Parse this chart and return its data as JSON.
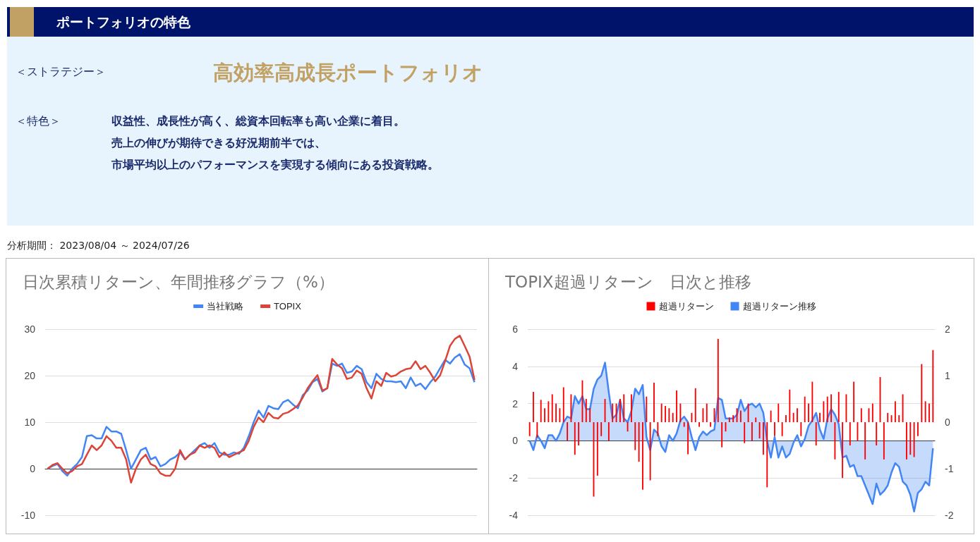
{
  "chart_data": [
    {
      "type": "other",
      "title": "ポートフォリオの特色",
      "subtitle": "高効率高成長ポートフォリオ",
      "annotations": [
        "＜ストラテジー＞",
        "＜特色＞",
        "収益性、成長性が高く、総資本回転率も高い企業に着目。",
        "売上の伸びが期待できる好況期前半では、",
        "市場平均以上のパフォーマンスを実現する傾向にある投資戦略。",
        "分析期間： 2023/08/04 ～ 2024/07/26"
      ]
    },
    {
      "type": "line",
      "title": "日次累積リターン、年間推移グラフ（%）",
      "categories": [
        null,
        null,
        null,
        null,
        null,
        null,
        null,
        null,
        null,
        null,
        null,
        null,
        null,
        null,
        null,
        null,
        null,
        null,
        null,
        null,
        null,
        null,
        null,
        null,
        null,
        null,
        null,
        null,
        null,
        null,
        null,
        null,
        null,
        null,
        null,
        null,
        null,
        null,
        null,
        null,
        null,
        null,
        null,
        null,
        null,
        null,
        null,
        null,
        null,
        null,
        null,
        null,
        null,
        null,
        null,
        null,
        null,
        null,
        null,
        null,
        null,
        null,
        null,
        null,
        null,
        null,
        null,
        null,
        null,
        null,
        null,
        null,
        null,
        null,
        null,
        null,
        null,
        null,
        null,
        null,
        null,
        null,
        null,
        null,
        null,
        null,
        null,
        null
      ],
      "series": [
        {
          "name": "当社戦略",
          "color": "#4285f4",
          "values": [
            0,
            0.6,
            1,
            -0.5,
            -1.5,
            0,
            1,
            2.5,
            7,
            7.2,
            6.5,
            6.5,
            9,
            8,
            8,
            7.5,
            4,
            0,
            2,
            4,
            4.5,
            2,
            2.5,
            0.5,
            1,
            2,
            2.5,
            3.5,
            2,
            3,
            4,
            5,
            5.5,
            4.5,
            5.5,
            3.5,
            3,
            3,
            3.5,
            3.2,
            4.5,
            7,
            10,
            12.5,
            11,
            13.5,
            13,
            12.8,
            14.3,
            14.8,
            13.8,
            13,
            15.8,
            16.8,
            18.6,
            19.3,
            16.6,
            17.3,
            22.6,
            22.1,
            22.6,
            20.6,
            20.9,
            22.1,
            21.4,
            18.6,
            17.3,
            20.4,
            19.3,
            18.8,
            18.8,
            18.6,
            18.8,
            17.3,
            19.6,
            17.8,
            18.3,
            17.1,
            18.6,
            19.8,
            21.6,
            23.4,
            22.6,
            23.9,
            24.6,
            22.4,
            21.6,
            18.6
          ]
        },
        {
          "name": "TOPIX",
          "color": "#db4437",
          "values": [
            0,
            0.8,
            1.2,
            0,
            -1,
            -0.5,
            0.5,
            1,
            3,
            5,
            4,
            5,
            7,
            6,
            4.5,
            4.5,
            2,
            -3,
            0,
            2,
            3,
            1,
            0.5,
            -1,
            -1.5,
            -1.5,
            0,
            4,
            2,
            3,
            3.5,
            5,
            4.5,
            5,
            4.5,
            2.5,
            3.5,
            2.5,
            3,
            3.5,
            4,
            6,
            9,
            11,
            10,
            12,
            11,
            10.8,
            11.8,
            12.1,
            12.8,
            13.6,
            15.3,
            17.3,
            18.8,
            20.1,
            16.8,
            17.3,
            23.6,
            22.4,
            21.6,
            19.3,
            19.6,
            21.1,
            20.4,
            17.3,
            15.1,
            18.8,
            17.8,
            20.6,
            19.8,
            20.1,
            20.9,
            21.4,
            21.6,
            23.1,
            21.4,
            22.1,
            20.6,
            18.8,
            20.1,
            23.1,
            26.4,
            27.9,
            28.6,
            26.4,
            24.1,
            19.1
          ]
        }
      ],
      "ylim": [
        -10,
        30
      ],
      "yticks": [
        -10,
        0,
        10,
        20,
        30
      ],
      "grid": "y",
      "legend": "top",
      "marker": "none",
      "tick_labels": "y"
    },
    {
      "type": "bar",
      "title": "TOPIX超過リターン　日次と推移",
      "categories": [
        null,
        null,
        null,
        null,
        null,
        null,
        null,
        null,
        null,
        null,
        null,
        null,
        null,
        null,
        null,
        null,
        null,
        null,
        null,
        null,
        null,
        null,
        null,
        null,
        null,
        null,
        null,
        null,
        null,
        null,
        null,
        null,
        null,
        null,
        null,
        null,
        null,
        null,
        null,
        null,
        null,
        null,
        null,
        null,
        null,
        null,
        null,
        null,
        null,
        null,
        null,
        null,
        null,
        null,
        null,
        null,
        null,
        null,
        null,
        null,
        null,
        null,
        null,
        null,
        null,
        null,
        null,
        null,
        null,
        null,
        null,
        null,
        null,
        null,
        null,
        null,
        null,
        null,
        null,
        null,
        null,
        null,
        null,
        null,
        null,
        null,
        null,
        null,
        null,
        null,
        null,
        null,
        null,
        null,
        null,
        null,
        null,
        null,
        null,
        null,
        null,
        null,
        null,
        null,
        null,
        null,
        null,
        null
      ],
      "series": [
        {
          "name": "超過リターン",
          "type": "bar",
          "axis": "y2",
          "color": "#ff0000",
          "values": [
            -0.3,
            0.65,
            -0.33,
            0.48,
            0.3,
            0.45,
            0.6,
            0.4,
            0.3,
            0.75,
            -0.4,
            0.6,
            -0.7,
            -0.5,
            0.9,
            0.5,
            0.3,
            -1.6,
            -1.15,
            -0.3,
            0.5,
            -0.4,
            0.4,
            0.4,
            0.5,
            0.6,
            -0.2,
            0.6,
            -0.6,
            -0.85,
            -1.45,
            0.55,
            -1.25,
            0.85,
            -0.3,
            0.4,
            0.35,
            0.3,
            0.2,
            0.68,
            0.4,
            -0.1,
            -0.69,
            0.2,
            0.73,
            -0.1,
            0.3,
            0.4,
            -0.1,
            0.3,
            1.79,
            -0.54,
            -0.2,
            0.1,
            0.15,
            0.3,
            0.25,
            -0.45,
            0.4,
            -0.4,
            0.1,
            -0.35,
            -0.7,
            -1.4,
            0.25,
            -0.3,
            0.4,
            -0.3,
            0.15,
            0.7,
            0.2,
            0.3,
            -0.3,
            0.55,
            0.4,
            0.87,
            -0.5,
            0.2,
            0.45,
            0.55,
            0.6,
            -0.8,
            0.65,
            -1.2,
            0.6,
            -0.5,
            0.87,
            -0.4,
            0.3,
            -0.8,
            0.3,
            0.4,
            -0.5,
            0.97,
            -0.8,
            0.2,
            0.15,
            0.45,
            0.15,
            0.6,
            -0.8,
            -0.7,
            -0.75,
            -0.3,
            1.25,
            0.45,
            0.4,
            1.55
          ]
        },
        {
          "name": "超過リターン推移",
          "type": "area",
          "color": "#4285f4",
          "values": [
            0,
            -0.5,
            0.3,
            0,
            -0.4,
            0.3,
            0.3,
            0,
            0.4,
            1,
            1.3,
            1.2,
            2.4,
            2,
            2.4,
            1.7,
            1.7,
            2.8,
            3.3,
            3.5,
            4.2,
            2.6,
            1.2,
            1.4,
            2.2,
            1.2,
            1,
            1.6,
            2.8,
            2.5,
            3,
            0.2,
            -0.5,
            0.6,
            0.4,
            -0.3,
            -0.6,
            0.3,
            0,
            0.4,
            1.1,
            1.3,
            1,
            0.2,
            -0.5,
            0.2,
            0.5,
            0.3,
            0.5,
            0.6,
            2.3,
            2.2,
            1.2,
            1.2,
            1.2,
            1.4,
            2.2,
            1.6,
            1.9,
            2,
            1.8,
            2,
            1.5,
            0,
            -0.9,
            0.2,
            -0.9,
            -0.3,
            -0.9,
            -0.7,
            -0.1,
            0.3,
            -0.3,
            0.1,
            0.8,
            1.1,
            1.5,
            0.6,
            0.1,
            1.2,
            1.7,
            1.4,
            0.9,
            -0.9,
            -0.8,
            -1.4,
            -1.3,
            -1.9,
            -1.9,
            -2.4,
            -2.9,
            -3.4,
            -2.3,
            -2.9,
            -2.7,
            -2.4,
            -1.7,
            -1.2,
            -1.4,
            -2.2,
            -2.4,
            -2.9,
            -3.8,
            -2.8,
            -2.6,
            -2.2,
            -2.4,
            -0.4
          ]
        }
      ],
      "ylim": [
        -4,
        6
      ],
      "yticks": [
        -4,
        -2,
        0,
        2,
        4,
        6
      ],
      "y2lim": [
        -2,
        2
      ],
      "y2ticks": [
        -2,
        -1,
        0,
        1,
        2
      ],
      "grid": "y",
      "legend": "top",
      "marker": "none",
      "tick_labels": "y"
    }
  ]
}
